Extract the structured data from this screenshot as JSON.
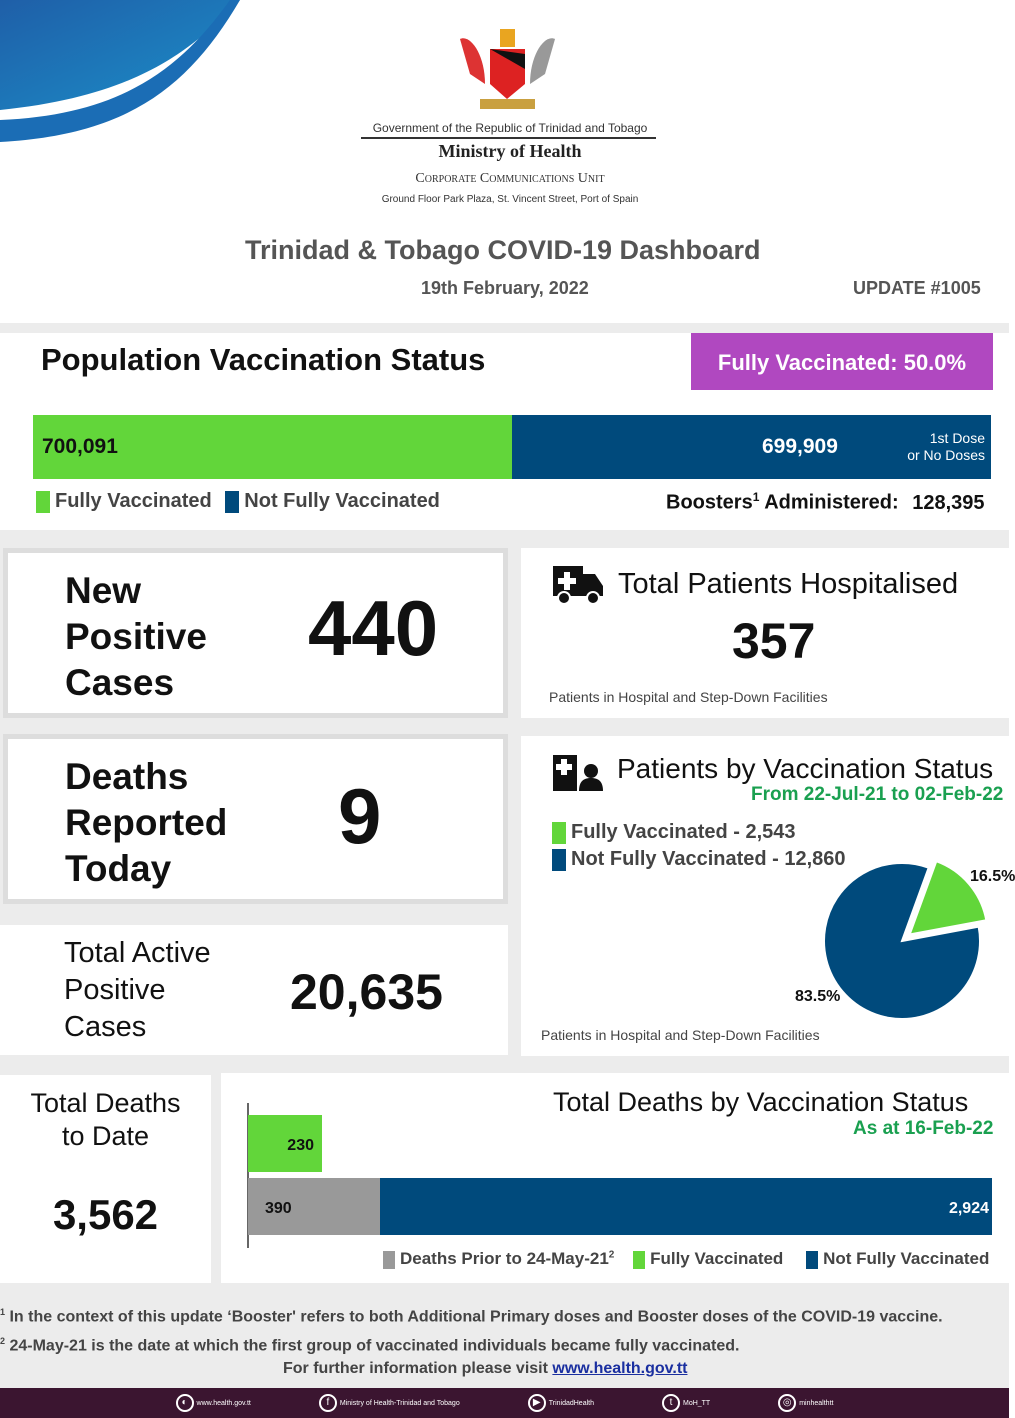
{
  "header": {
    "gov": "Government of the Republic of Trinidad and Tobago",
    "ministry": "Ministry of Health",
    "unit": "Corporate Communications Unit",
    "address": "Ground Floor Park Plaza, St. Vincent Street, Port of Spain",
    "title": "Trinidad & Tobago COVID-19 Dashboard",
    "date": "19th February, 2022",
    "update": "UPDATE #1005"
  },
  "vaccination": {
    "title": "Population Vaccination Status",
    "badge": "Fully Vaccinated: 50.0%",
    "fully": "700,091",
    "not_fully": "699,909",
    "not_fully_note1": "1st Dose",
    "not_fully_note2": "or No Doses",
    "fully_fraction": 0.5,
    "legend_fully": "Fully Vaccinated",
    "legend_not": "Not Fully Vaccinated",
    "boosters_label": "Boosters",
    "boosters_sup": "1",
    "boosters_label2": " Administered:",
    "boosters_value": "128,395"
  },
  "new_cases": {
    "l1": "New",
    "l2": "Positive",
    "l3": "Cases",
    "value": "440"
  },
  "deaths_today": {
    "l1": "Deaths",
    "l2": "Reported",
    "l3": "Today",
    "value": "9"
  },
  "active": {
    "l1": "Total Active",
    "l2": "Positive",
    "l3": "Cases",
    "value": "20,635"
  },
  "total_deaths": {
    "l1": "Total Deaths",
    "l2": "to Date",
    "value": "3,562"
  },
  "hospitalised": {
    "title": "Total Patients Hospitalised",
    "value": "357",
    "note": "Patients in Hospital and Step-Down Facilities"
  },
  "colors": {
    "green": "#62d63a",
    "blue": "#004a7c",
    "gray": "#999999",
    "purple": "#b048c0"
  },
  "chart_data": [
    {
      "type": "pie",
      "title": "Patients by Vaccination Status",
      "subtitle": "From 22-Jul-21 to 02-Feb-22",
      "legend": [
        "Fully Vaccinated - 2,543",
        "Not Fully Vaccinated - 12,860"
      ],
      "categories": [
        "Fully Vaccinated",
        "Not Fully Vaccinated"
      ],
      "values": [
        2543,
        12860
      ],
      "labels": [
        "16.5%",
        "83.5%"
      ],
      "note": "Patients in Hospital and Step-Down Facilities"
    },
    {
      "type": "bar",
      "orientation": "horizontal",
      "stacked": true,
      "title": "Total Deaths by Vaccination Status",
      "subtitle": "As at 16-Feb-22",
      "rows": [
        {
          "segments": [
            {
              "series": "Fully Vaccinated",
              "value": 230,
              "label": "230"
            }
          ]
        },
        {
          "segments": [
            {
              "series": "Deaths Prior to 24-May-21",
              "value": 390,
              "label": "390"
            },
            {
              "series": "Not Fully Vaccinated",
              "value": 2924,
              "label": "2,924"
            }
          ]
        }
      ],
      "legend": [
        "Deaths Prior to 24-May-21",
        "Fully Vaccinated",
        "Not Fully Vaccinated"
      ],
      "legend_sup": "2"
    }
  ],
  "footnotes": {
    "n1": "1",
    "t1": " In the context of this update ‘Booster' refers to both Additional Primary doses and Booster doses of the COVID-19 vaccine.",
    "n2": "2",
    "t2": " 24-May-21 is the date at which the first group of vaccinated individuals became fully vaccinated.",
    "info": "For further information please visit ",
    "link": "www.health.gov.tt"
  },
  "social": [
    {
      "icon": "globe",
      "label": "www.health.gov.tt"
    },
    {
      "icon": "f",
      "label": "Ministry of Health-Trinidad and Tobago"
    },
    {
      "icon": "▶",
      "label": "TrinidadHealth"
    },
    {
      "icon": "t",
      "label": "MoH_TT"
    },
    {
      "icon": "◎",
      "label": "minhealthtt"
    }
  ]
}
